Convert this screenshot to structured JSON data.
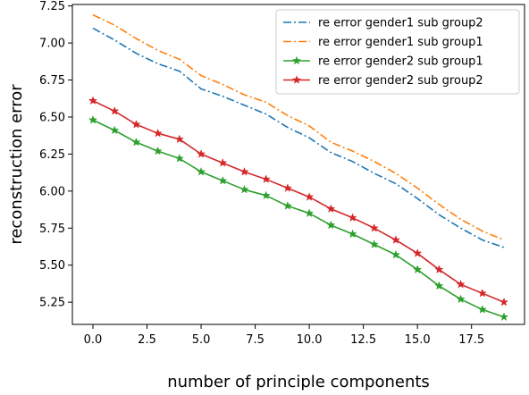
{
  "chart_data": {
    "type": "line",
    "title": "",
    "xlabel": "number of principle components",
    "ylabel": "reconstruction error",
    "xlim": [
      -0.95,
      19.95
    ],
    "ylim": [
      5.1,
      7.26
    ],
    "xticks": [
      0.0,
      2.5,
      5.0,
      7.5,
      10.0,
      12.5,
      15.0,
      17.5
    ],
    "xtick_labels": [
      "0.0",
      "2.5",
      "5.0",
      "7.5",
      "10.0",
      "12.5",
      "15.0",
      "17.5"
    ],
    "yticks": [
      5.25,
      5.5,
      5.75,
      6.0,
      6.25,
      6.5,
      6.75,
      7.0,
      7.25
    ],
    "ytick_labels": [
      "5.25",
      "5.50",
      "5.75",
      "6.00",
      "6.25",
      "6.50",
      "6.75",
      "7.00",
      "7.25"
    ],
    "grid": false,
    "legend_position": "top-right",
    "x": [
      0,
      1,
      2,
      3,
      4,
      5,
      6,
      7,
      8,
      9,
      10,
      11,
      12,
      13,
      14,
      15,
      16,
      17,
      18,
      19
    ],
    "series": [
      {
        "name": "re error gender1 sub group2",
        "color": "#1f77b4",
        "linestyle": "dashdot",
        "marker": "none",
        "values": [
          7.1,
          7.02,
          6.93,
          6.86,
          6.81,
          6.69,
          6.64,
          6.58,
          6.52,
          6.43,
          6.36,
          6.26,
          6.2,
          6.12,
          6.05,
          5.95,
          5.84,
          5.75,
          5.67,
          5.62
        ]
      },
      {
        "name": "re error gender1 sub group1",
        "color": "#ff7f0e",
        "linestyle": "dashdot",
        "marker": "none",
        "values": [
          7.19,
          7.12,
          7.03,
          6.95,
          6.89,
          6.78,
          6.72,
          6.65,
          6.6,
          6.51,
          6.44,
          6.33,
          6.27,
          6.2,
          6.12,
          6.02,
          5.91,
          5.81,
          5.73,
          5.67
        ]
      },
      {
        "name": "re error gender2 sub group1",
        "color": "#2ca02c",
        "linestyle": "solid",
        "marker": "star",
        "values": [
          6.48,
          6.41,
          6.33,
          6.27,
          6.22,
          6.13,
          6.07,
          6.01,
          5.97,
          5.9,
          5.85,
          5.77,
          5.71,
          5.64,
          5.57,
          5.47,
          5.36,
          5.27,
          5.2,
          5.15
        ]
      },
      {
        "name": "re error gender2 sub group2",
        "color": "#d62728",
        "linestyle": "solid",
        "marker": "star",
        "values": [
          6.61,
          6.54,
          6.45,
          6.39,
          6.35,
          6.25,
          6.19,
          6.13,
          6.08,
          6.02,
          5.96,
          5.88,
          5.82,
          5.75,
          5.67,
          5.58,
          5.47,
          5.37,
          5.31,
          5.25
        ]
      }
    ]
  }
}
